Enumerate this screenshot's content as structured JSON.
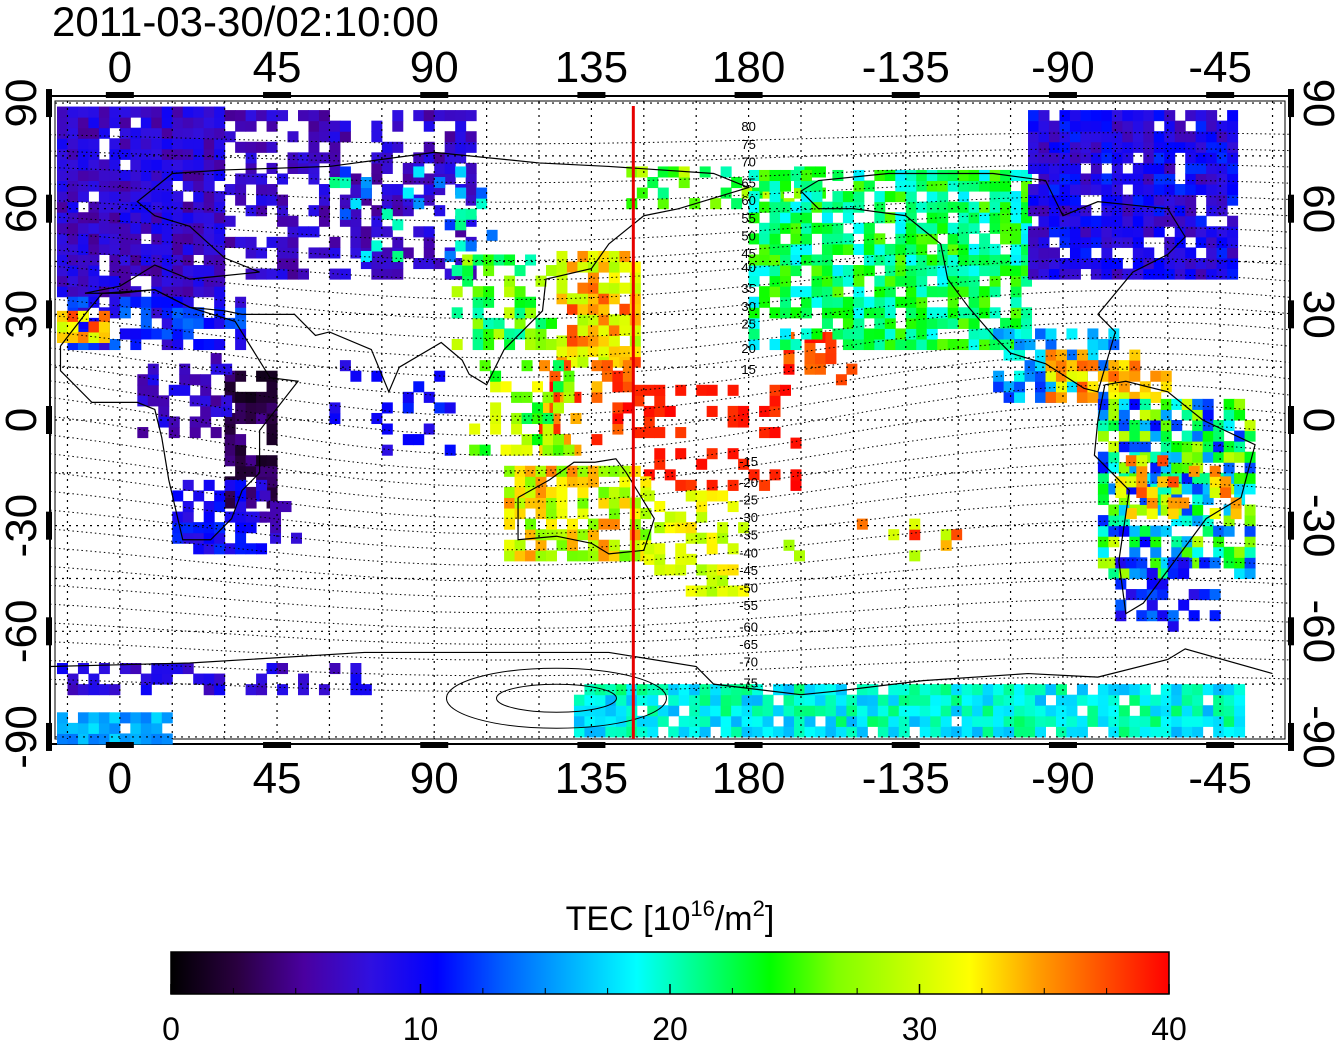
{
  "title": "2011-03-30/02:10:00",
  "map": {
    "x_ticks": [
      "0",
      "45",
      "90",
      "135",
      "180",
      "-135",
      "-90",
      "-45"
    ],
    "x_tick_lon": [
      0,
      45,
      90,
      135,
      180,
      225,
      270,
      315
    ],
    "lon_range": [
      -20,
      335
    ],
    "y_ticks": [
      "90",
      "60",
      "30",
      "0",
      "-30",
      "-60",
      "-90"
    ],
    "y_tick_lat": [
      90,
      60,
      30,
      0,
      -30,
      -60,
      -90
    ],
    "lat_range": [
      -92,
      92
    ],
    "meridian_line_lon": 147,
    "meridian_line_color": "#e60000",
    "contour_labels_north": [
      "80",
      "75",
      "70",
      "65",
      "60",
      "55",
      "50",
      "45",
      "40",
      "35",
      "30",
      "25",
      "20",
      "15"
    ],
    "contour_labels_south": [
      "-15",
      "-20",
      "-25",
      "-30",
      "-35",
      "-40",
      "-45",
      "-50",
      "-55",
      "-60",
      "-65",
      "-70",
      "-75"
    ]
  },
  "colorbar": {
    "label_prefix": "TEC  [10",
    "label_exp1": "16",
    "label_mid": "/m",
    "label_exp2": "2",
    "label_suffix": "]",
    "ticks": [
      "0",
      "10",
      "20",
      "30",
      "40"
    ],
    "range": [
      0,
      40
    ],
    "colormap": [
      "#000000",
      "#2a0040",
      "#4a00a0",
      "#3010e0",
      "#0000ff",
      "#0060ff",
      "#00b0ff",
      "#00ffff",
      "#00ff80",
      "#00ff00",
      "#80ff00",
      "#c0ff00",
      "#ffff00",
      "#ffa000",
      "#ff5000",
      "#ff0000"
    ]
  }
}
